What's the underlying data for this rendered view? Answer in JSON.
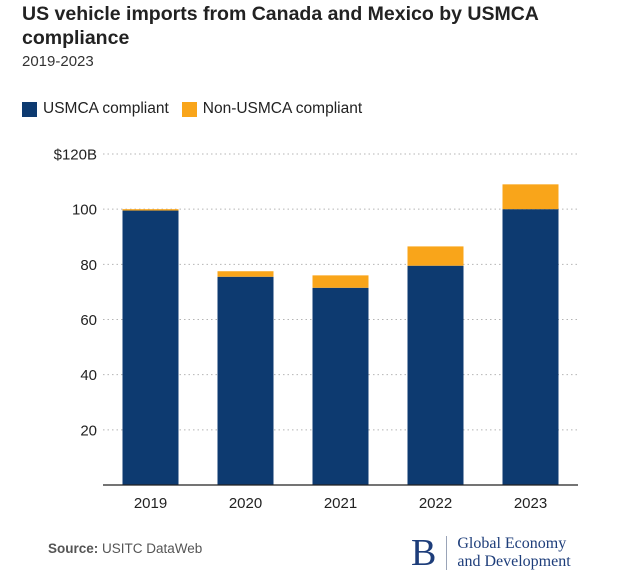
{
  "header": {
    "title": "US vehicle imports from Canada and Mexico by USMCA compliance",
    "subtitle": "2019-2023"
  },
  "legend": {
    "items": [
      {
        "label": "USMCA compliant",
        "color": "#0d3a70"
      },
      {
        "label": "Non-USMCA compliant",
        "color": "#f9a51a"
      }
    ]
  },
  "chart_data": {
    "type": "bar",
    "stacked": true,
    "title": "US vehicle imports from Canada and Mexico by USMCA compliance",
    "subtitle": "2019-2023",
    "categories": [
      "2019",
      "2020",
      "2021",
      "2022",
      "2023"
    ],
    "series": [
      {
        "name": "USMCA compliant",
        "color": "#0d3a70",
        "values": [
          99.5,
          75.5,
          71.5,
          79.5,
          100
        ]
      },
      {
        "name": "Non-USMCA compliant",
        "color": "#f9a51a",
        "values": [
          0.5,
          2,
          4.5,
          7,
          9
        ]
      }
    ],
    "ylim": [
      0,
      120
    ],
    "yticks": [
      0,
      20,
      40,
      60,
      80,
      100,
      120
    ],
    "ytick_labels": [
      "",
      "20",
      "40",
      "60",
      "80",
      "100",
      "$120B"
    ],
    "xlabel": "",
    "ylabel": "",
    "grid": true,
    "legend_position": "top-left"
  },
  "footer": {
    "source_label": "Source:",
    "source_text": "USITC DataWeb",
    "brand_mark": "B",
    "brand_line1": "Global Economy",
    "brand_line2": "and Development"
  }
}
